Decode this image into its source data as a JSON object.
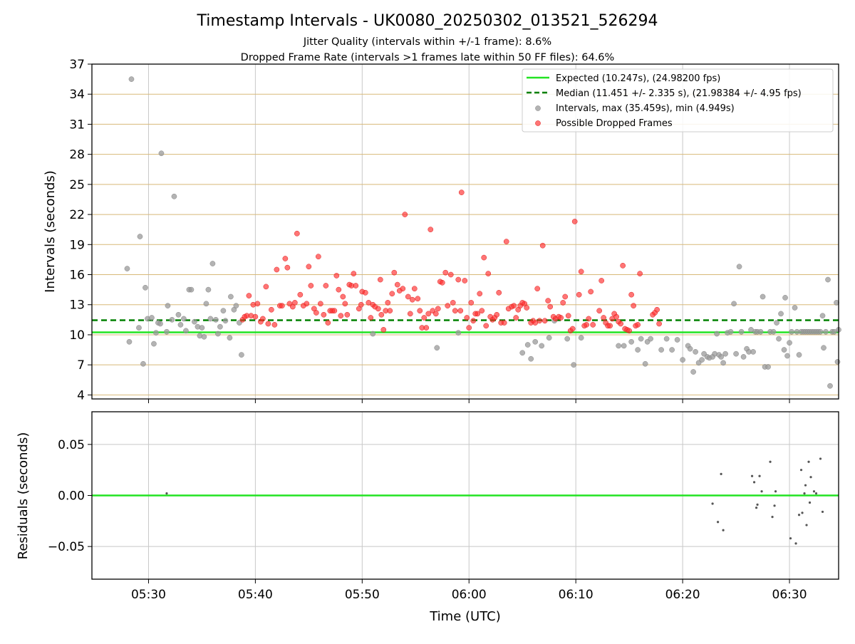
{
  "title": "Timestamp Intervals - UK0080_20250302_013521_526294",
  "subtitle_lines": [
    "Jitter Quality (intervals within +/-1 frame): 8.6%",
    "Dropped Frame Rate (intervals >1 frames late within 50 FF files): 64.6%"
  ],
  "colors": {
    "expected": "#22e322",
    "median": "#008000",
    "intervals": "#999999",
    "dropped": "#ff2b2b",
    "hgrid_top": "#d8b978",
    "grid": "#c8c8c8",
    "residuals": "#555555"
  },
  "chart_data": [
    {
      "type": "scatter",
      "panel": "top",
      "xlabel": "",
      "ylabel": "Intervals (seconds)",
      "xlim": [
        -5.3,
        64.6
      ],
      "x_ticks": [
        0,
        10,
        20,
        30,
        40,
        50,
        60
      ],
      "x_ticks_units": "minutes after 05:30 UTC",
      "ylim": [
        3.6,
        37
      ],
      "y_ticks": [
        4,
        7,
        10,
        13,
        16,
        19,
        22,
        25,
        28,
        31,
        34,
        37
      ],
      "grid": true,
      "legend_position": "top-right",
      "legend": [
        "Expected (10.247s), (24.98200 fps)",
        "Median (11.451 +/- 2.335 s), (21.98384 +/- 4.95 fps)",
        "Intervals, max (35.459s), min (4.949s)",
        "Possible Dropped Frames"
      ],
      "expected_line": 10.247,
      "median_line": 11.451,
      "intervals": [
        [
          -2,
          16.6
        ],
        [
          -1.8,
          9.3
        ],
        [
          -1.6,
          35.5
        ],
        [
          -0.9,
          10.7
        ],
        [
          -0.8,
          19.8
        ],
        [
          -0.5,
          7.1
        ],
        [
          -0.3,
          14.7
        ],
        [
          -0.1,
          11.6
        ],
        [
          0.3,
          11.7
        ],
        [
          0.5,
          9.1
        ],
        [
          0.7,
          10.2
        ],
        [
          0.9,
          11.2
        ],
        [
          1.1,
          11.1
        ],
        [
          1.2,
          28.1
        ],
        [
          1.7,
          10.3
        ],
        [
          1.8,
          12.9
        ],
        [
          2.2,
          11.5
        ],
        [
          2.4,
          23.8
        ],
        [
          2.8,
          12.0
        ],
        [
          3.0,
          11.0
        ],
        [
          3.3,
          11.6
        ],
        [
          3.5,
          10.4
        ],
        [
          3.8,
          14.5
        ],
        [
          4.0,
          14.5
        ],
        [
          4.3,
          11.3
        ],
        [
          4.6,
          10.8
        ],
        [
          4.8,
          9.9
        ],
        [
          5.0,
          10.7
        ],
        [
          5.2,
          9.8
        ],
        [
          5.4,
          13.1
        ],
        [
          5.6,
          14.5
        ],
        [
          5.8,
          11.6
        ],
        [
          6.0,
          17.1
        ],
        [
          6.3,
          11.5
        ],
        [
          6.5,
          10.1
        ],
        [
          6.7,
          10.8
        ],
        [
          7.0,
          12.4
        ],
        [
          7.2,
          11.4
        ],
        [
          7.6,
          9.7
        ],
        [
          7.7,
          13.8
        ],
        [
          8.0,
          12.5
        ],
        [
          8.2,
          12.9
        ],
        [
          8.5,
          11.2
        ],
        [
          8.7,
          8.0
        ],
        [
          21.0,
          10.1
        ],
        [
          29.0,
          10.2
        ],
        [
          27.0,
          8.7
        ],
        [
          35.0,
          8.2
        ],
        [
          35.5,
          9.0
        ],
        [
          35.8,
          7.6
        ],
        [
          36.2,
          9.3
        ],
        [
          36.8,
          8.9
        ],
        [
          37.5,
          9.7
        ],
        [
          38.0,
          11.4
        ],
        [
          39.2,
          9.6
        ],
        [
          39.8,
          7.0
        ],
        [
          40.5,
          9.7
        ],
        [
          44.0,
          8.9
        ],
        [
          44.5,
          8.9
        ],
        [
          45.2,
          9.3
        ],
        [
          45.8,
          8.5
        ],
        [
          46.1,
          9.6
        ],
        [
          46.5,
          7.1
        ],
        [
          46.7,
          9.3
        ],
        [
          47.0,
          9.6
        ],
        [
          48.0,
          8.5
        ],
        [
          48.5,
          9.6
        ],
        [
          49.0,
          8.5
        ],
        [
          49.5,
          9.5
        ],
        [
          50.0,
          7.5
        ],
        [
          50.5,
          8.9
        ],
        [
          50.7,
          8.6
        ],
        [
          51.0,
          6.3
        ],
        [
          51.2,
          8.3
        ],
        [
          51.5,
          7.2
        ],
        [
          51.8,
          7.5
        ],
        [
          52.0,
          8.1
        ],
        [
          52.3,
          7.8
        ],
        [
          52.5,
          7.7
        ],
        [
          52.8,
          7.8
        ],
        [
          53.0,
          8.1
        ],
        [
          53.2,
          10.1
        ],
        [
          53.4,
          8.0
        ],
        [
          53.6,
          7.8
        ],
        [
          53.8,
          7.2
        ],
        [
          54.0,
          8.1
        ],
        [
          54.2,
          10.2
        ],
        [
          54.5,
          10.3
        ],
        [
          54.8,
          13.1
        ],
        [
          55.0,
          8.1
        ],
        [
          55.3,
          16.8
        ],
        [
          55.5,
          10.3
        ],
        [
          55.7,
          7.8
        ],
        [
          56.0,
          8.6
        ],
        [
          56.2,
          8.3
        ],
        [
          56.4,
          10.5
        ],
        [
          56.6,
          8.3
        ],
        [
          56.8,
          10.3
        ],
        [
          57.0,
          10.3
        ],
        [
          57.3,
          10.3
        ],
        [
          57.5,
          13.8
        ],
        [
          57.7,
          6.8
        ],
        [
          58.0,
          6.8
        ],
        [
          58.2,
          10.3
        ],
        [
          58.5,
          10.3
        ],
        [
          58.8,
          11.2
        ],
        [
          59.0,
          9.6
        ],
        [
          59.2,
          12.1
        ],
        [
          59.5,
          8.5
        ],
        [
          59.6,
          13.7
        ],
        [
          59.8,
          7.9
        ],
        [
          60.0,
          9.2
        ],
        [
          60.2,
          10.3
        ],
        [
          60.5,
          12.7
        ],
        [
          60.7,
          10.3
        ],
        [
          60.9,
          8.0
        ],
        [
          61.1,
          10.3
        ],
        [
          61.3,
          10.3
        ],
        [
          61.5,
          10.3
        ],
        [
          61.7,
          10.3
        ],
        [
          61.9,
          10.3
        ],
        [
          62.1,
          10.3
        ],
        [
          62.3,
          10.3
        ],
        [
          62.5,
          10.3
        ],
        [
          62.7,
          10.3
        ],
        [
          62.9,
          10.3
        ],
        [
          63.1,
          11.9
        ],
        [
          63.2,
          8.7
        ],
        [
          63.4,
          10.3
        ],
        [
          63.6,
          15.5
        ],
        [
          63.8,
          4.9
        ],
        [
          64.0,
          10.3
        ],
        [
          64.2,
          10.3
        ],
        [
          64.4,
          13.2
        ],
        [
          64.5,
          7.3
        ],
        [
          64.6,
          10.5
        ]
      ],
      "dropped": [
        [
          8.8,
          11.5
        ],
        [
          9.0,
          11.8
        ],
        [
          9.2,
          11.9
        ],
        [
          9.4,
          13.9
        ],
        [
          9.6,
          11.9
        ],
        [
          9.8,
          13.0
        ],
        [
          10.0,
          11.8
        ],
        [
          10.2,
          13.1
        ],
        [
          10.5,
          11.3
        ],
        [
          10.7,
          11.6
        ],
        [
          11.0,
          14.8
        ],
        [
          11.2,
          11.1
        ],
        [
          11.5,
          12.5
        ],
        [
          11.8,
          11.0
        ],
        [
          12.0,
          16.5
        ],
        [
          12.3,
          12.9
        ],
        [
          12.5,
          12.9
        ],
        [
          12.8,
          17.6
        ],
        [
          13.0,
          16.7
        ],
        [
          13.2,
          13.1
        ],
        [
          13.5,
          12.8
        ],
        [
          13.7,
          13.2
        ],
        [
          13.9,
          20.1
        ],
        [
          14.2,
          14.0
        ],
        [
          14.5,
          12.9
        ],
        [
          14.8,
          13.1
        ],
        [
          15.0,
          16.8
        ],
        [
          15.2,
          14.9
        ],
        [
          15.5,
          12.6
        ],
        [
          15.7,
          12.2
        ],
        [
          15.9,
          17.8
        ],
        [
          16.1,
          13.1
        ],
        [
          16.4,
          12.0
        ],
        [
          16.6,
          14.9
        ],
        [
          16.8,
          11.2
        ],
        [
          17.0,
          12.4
        ],
        [
          17.2,
          12.4
        ],
        [
          17.4,
          12.4
        ],
        [
          17.6,
          15.9
        ],
        [
          17.8,
          14.5
        ],
        [
          18.0,
          11.9
        ],
        [
          18.2,
          13.8
        ],
        [
          18.4,
          13.1
        ],
        [
          18.6,
          12.0
        ],
        [
          18.8,
          15.0
        ],
        [
          19.0,
          14.9
        ],
        [
          19.2,
          16.1
        ],
        [
          19.4,
          14.9
        ],
        [
          19.7,
          12.6
        ],
        [
          19.9,
          13.0
        ],
        [
          20.0,
          14.3
        ],
        [
          20.3,
          14.2
        ],
        [
          20.6,
          13.2
        ],
        [
          20.8,
          11.7
        ],
        [
          21.0,
          13.0
        ],
        [
          21.2,
          12.8
        ],
        [
          21.5,
          12.6
        ],
        [
          21.7,
          15.5
        ],
        [
          21.8,
          12.0
        ],
        [
          22.0,
          10.5
        ],
        [
          22.2,
          12.4
        ],
        [
          22.4,
          13.2
        ],
        [
          22.6,
          12.4
        ],
        [
          22.8,
          14.1
        ],
        [
          23.0,
          16.2
        ],
        [
          23.3,
          15.0
        ],
        [
          23.5,
          14.4
        ],
        [
          23.8,
          14.6
        ],
        [
          24.0,
          22.0
        ],
        [
          24.3,
          13.8
        ],
        [
          24.5,
          12.1
        ],
        [
          24.7,
          13.5
        ],
        [
          24.9,
          14.6
        ],
        [
          25.2,
          13.6
        ],
        [
          25.4,
          12.4
        ],
        [
          25.6,
          10.7
        ],
        [
          25.8,
          11.7
        ],
        [
          26.0,
          10.7
        ],
        [
          26.2,
          12.1
        ],
        [
          26.4,
          20.5
        ],
        [
          26.6,
          12.4
        ],
        [
          26.9,
          12.1
        ],
        [
          27.1,
          12.6
        ],
        [
          27.3,
          15.3
        ],
        [
          27.5,
          15.2
        ],
        [
          27.8,
          16.2
        ],
        [
          28.0,
          12.9
        ],
        [
          28.3,
          16.0
        ],
        [
          28.5,
          13.2
        ],
        [
          28.7,
          12.4
        ],
        [
          29.0,
          15.5
        ],
        [
          29.2,
          12.4
        ],
        [
          29.3,
          24.2
        ],
        [
          29.6,
          15.4
        ],
        [
          29.8,
          11.7
        ],
        [
          30.0,
          10.7
        ],
        [
          30.2,
          13.2
        ],
        [
          30.4,
          11.4
        ],
        [
          30.6,
          12.1
        ],
        [
          30.8,
          12.1
        ],
        [
          31.0,
          14.1
        ],
        [
          31.2,
          12.4
        ],
        [
          31.4,
          17.7
        ],
        [
          31.6,
          10.9
        ],
        [
          31.8,
          16.1
        ],
        [
          32.0,
          11.8
        ],
        [
          32.2,
          11.5
        ],
        [
          32.4,
          11.7
        ],
        [
          32.6,
          12.0
        ],
        [
          32.8,
          14.2
        ],
        [
          33.0,
          11.2
        ],
        [
          33.3,
          11.2
        ],
        [
          33.5,
          19.3
        ],
        [
          33.7,
          12.6
        ],
        [
          34.0,
          12.8
        ],
        [
          34.2,
          12.9
        ],
        [
          34.4,
          11.7
        ],
        [
          34.6,
          12.5
        ],
        [
          34.8,
          12.9
        ],
        [
          35.0,
          13.2
        ],
        [
          35.2,
          13.1
        ],
        [
          35.4,
          12.7
        ],
        [
          35.8,
          11.2
        ],
        [
          36.0,
          11.4
        ],
        [
          36.2,
          11.2
        ],
        [
          36.4,
          14.6
        ],
        [
          36.6,
          11.4
        ],
        [
          36.9,
          18.9
        ],
        [
          37.1,
          11.4
        ],
        [
          37.4,
          13.4
        ],
        [
          37.6,
          12.8
        ],
        [
          37.9,
          11.8
        ],
        [
          38.1,
          11.6
        ],
        [
          38.4,
          11.8
        ],
        [
          38.6,
          11.7
        ],
        [
          38.8,
          13.2
        ],
        [
          39.0,
          13.8
        ],
        [
          39.3,
          11.9
        ],
        [
          39.5,
          10.4
        ],
        [
          39.7,
          10.6
        ],
        [
          39.9,
          21.3
        ],
        [
          40.3,
          14.0
        ],
        [
          40.5,
          16.3
        ],
        [
          40.8,
          10.9
        ],
        [
          41.0,
          11.0
        ],
        [
          41.2,
          11.6
        ],
        [
          41.4,
          14.3
        ],
        [
          41.6,
          11.0
        ],
        [
          42.2,
          12.4
        ],
        [
          42.4,
          15.4
        ],
        [
          42.6,
          11.7
        ],
        [
          42.8,
          11.2
        ],
        [
          43.0,
          10.9
        ],
        [
          43.2,
          10.9
        ],
        [
          43.4,
          11.6
        ],
        [
          43.6,
          12.1
        ],
        [
          43.8,
          11.8
        ],
        [
          44.0,
          11.3
        ],
        [
          44.2,
          11.1
        ],
        [
          44.4,
          16.9
        ],
        [
          44.6,
          10.6
        ],
        [
          44.8,
          10.5
        ],
        [
          45.0,
          10.4
        ],
        [
          45.2,
          14.0
        ],
        [
          45.4,
          12.9
        ],
        [
          45.6,
          10.9
        ],
        [
          45.8,
          11.0
        ],
        [
          46.0,
          16.1
        ],
        [
          47.2,
          12.0
        ],
        [
          47.4,
          12.2
        ],
        [
          47.6,
          12.5
        ],
        [
          47.8,
          11.1
        ]
      ]
    },
    {
      "type": "scatter",
      "panel": "bottom",
      "xlabel": "Time (UTC)",
      "ylabel": "Residuals (seconds)",
      "xlim": [
        -5.3,
        64.6
      ],
      "x_ticks": [
        0,
        10,
        20,
        30,
        40,
        50,
        60
      ],
      "x_tick_labels": [
        "05:30",
        "05:40",
        "05:50",
        "06:00",
        "06:10",
        "06:20",
        "06:30"
      ],
      "ylim": [
        -0.082,
        0.082
      ],
      "y_ticks": [
        0.05,
        0.0,
        -0.05
      ],
      "y_tick_labels": [
        "0.05",
        "0.00",
        "−0.05"
      ],
      "grid": true,
      "zero_line": 0,
      "points": [
        [
          1.7,
          0.002
        ],
        [
          52.8,
          -0.008
        ],
        [
          53.3,
          -0.026
        ],
        [
          53.6,
          0.021
        ],
        [
          53.8,
          -0.034
        ],
        [
          56.5,
          0.019
        ],
        [
          56.7,
          0.013
        ],
        [
          56.9,
          -0.012
        ],
        [
          57.0,
          -0.009
        ],
        [
          57.2,
          0.019
        ],
        [
          57.4,
          0.004
        ],
        [
          58.2,
          0.033
        ],
        [
          58.4,
          -0.021
        ],
        [
          58.6,
          -0.01
        ],
        [
          58.7,
          0.004
        ],
        [
          60.1,
          -0.042
        ],
        [
          60.6,
          -0.047
        ],
        [
          60.9,
          -0.019
        ],
        [
          61.1,
          0.025
        ],
        [
          61.2,
          -0.017
        ],
        [
          61.4,
          0.002
        ],
        [
          61.5,
          0.01
        ],
        [
          61.6,
          -0.029
        ],
        [
          61.8,
          0.033
        ],
        [
          61.9,
          -0.007
        ],
        [
          62.0,
          0.018
        ],
        [
          62.3,
          0.004
        ],
        [
          62.5,
          0.002
        ],
        [
          62.9,
          0.036
        ],
        [
          63.1,
          -0.016
        ]
      ]
    }
  ]
}
